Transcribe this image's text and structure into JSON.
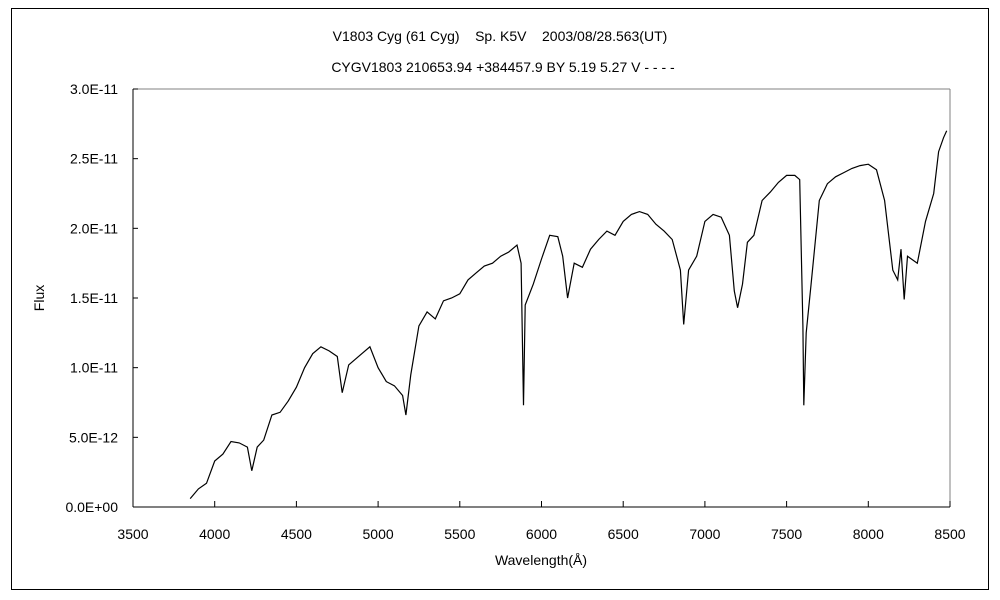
{
  "chart_data": {
    "type": "line",
    "title": "V1803 Cyg (61 Cyg)    Sp. K5V    2003/08/28.563(UT)",
    "subtitle": "CYGV1803 210653.94 +384457.9 BY 5.19 5.27 V - - - -",
    "xlabel": "Wavelength(Å)",
    "ylabel": "Flux",
    "xlim": [
      3500,
      8500
    ],
    "ylim": [
      0,
      3e-11
    ],
    "x_ticks": [
      3500,
      4000,
      4500,
      5000,
      5500,
      6000,
      6500,
      7000,
      7500,
      8000,
      8500
    ],
    "x_tick_labels": [
      "3500",
      "4000",
      "4500",
      "5000",
      "5500",
      "6000",
      "6500",
      "7000",
      "7500",
      "8000",
      "8500"
    ],
    "y_ticks": [
      0,
      5e-12,
      1e-11,
      1.5e-11,
      2e-11,
      2.5e-11,
      3e-11
    ],
    "y_tick_labels": [
      "0.0E+00",
      "5.0E-12",
      "1.0E-11",
      "1.5E-11",
      "2.0E-11",
      "2.5E-11",
      "3.0E-11"
    ],
    "grid": false,
    "legend": "none",
    "flux_unit_scale": 1e-12,
    "series": [
      {
        "name": "spectrum",
        "color": "#000000",
        "x": [
          3850,
          3900,
          3950,
          4000,
          4050,
          4100,
          4150,
          4200,
          4227,
          4260,
          4300,
          4350,
          4400,
          4450,
          4500,
          4550,
          4600,
          4650,
          4700,
          4750,
          4780,
          4820,
          4900,
          4950,
          5000,
          5050,
          5100,
          5150,
          5170,
          5200,
          5250,
          5300,
          5350,
          5400,
          5450,
          5500,
          5550,
          5600,
          5650,
          5700,
          5750,
          5800,
          5850,
          5875,
          5890,
          5900,
          5950,
          6000,
          6050,
          6100,
          6130,
          6160,
          6200,
          6250,
          6300,
          6350,
          6400,
          6450,
          6500,
          6550,
          6600,
          6650,
          6700,
          6750,
          6800,
          6850,
          6870,
          6900,
          6950,
          7000,
          7050,
          7100,
          7150,
          7180,
          7200,
          7230,
          7260,
          7300,
          7350,
          7400,
          7450,
          7500,
          7550,
          7580,
          7600,
          7605,
          7620,
          7650,
          7700,
          7750,
          7800,
          7850,
          7900,
          7950,
          8000,
          8050,
          8100,
          8150,
          8180,
          8200,
          8220,
          8240,
          8300,
          8350,
          8400,
          8430,
          8460,
          8480
        ],
        "y": [
          0.6,
          1.3,
          1.7,
          3.3,
          3.8,
          4.7,
          4.6,
          4.3,
          2.6,
          4.3,
          4.8,
          6.6,
          6.8,
          7.6,
          8.6,
          10.0,
          11.0,
          11.5,
          11.2,
          10.8,
          8.2,
          10.2,
          11.0,
          11.5,
          10.0,
          9.0,
          8.7,
          8.0,
          6.6,
          9.5,
          13.0,
          14.0,
          13.5,
          14.8,
          15.0,
          15.3,
          16.3,
          16.8,
          17.3,
          17.5,
          18.0,
          18.3,
          18.8,
          17.5,
          7.3,
          14.5,
          16.0,
          17.8,
          19.5,
          19.4,
          18.0,
          15.0,
          17.5,
          17.2,
          18.5,
          19.2,
          19.8,
          19.5,
          20.5,
          21.0,
          21.2,
          21.0,
          20.3,
          19.8,
          19.2,
          17.0,
          13.1,
          17.0,
          18.0,
          20.5,
          21.0,
          20.8,
          19.5,
          15.5,
          14.3,
          16.0,
          19.0,
          19.5,
          22.0,
          22.6,
          23.3,
          23.8,
          23.8,
          23.5,
          13.0,
          7.3,
          12.5,
          16.0,
          22.0,
          23.2,
          23.7,
          24.0,
          24.3,
          24.5,
          24.6,
          24.2,
          22.0,
          17.0,
          16.3,
          18.5,
          14.9,
          18.0,
          17.5,
          20.5,
          22.5,
          25.5,
          26.5,
          27.0
        ]
      }
    ]
  }
}
